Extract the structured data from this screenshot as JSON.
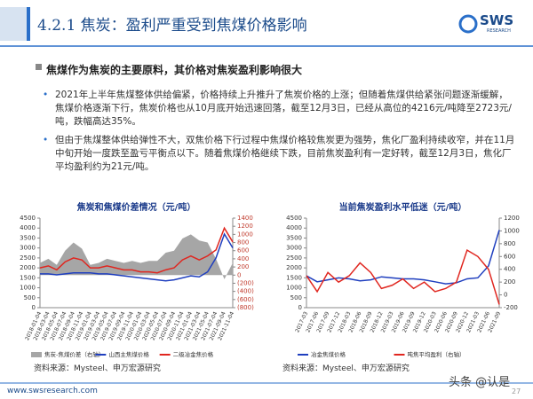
{
  "header": {
    "title": "4.2.1 焦炭：盈利严重受到焦煤价格影响",
    "logo": "SWS",
    "logo_sub": "RESEARCH"
  },
  "subheading": "焦煤作为焦炭的主要原料，其价格对焦炭盈利影响很大",
  "bullets": [
    "2021年上半年焦煤整体供给偏紧，价格持续上升推升了焦炭价格的上涨；但随着焦煤供给紧张问题逐渐缓解，焦煤价格逐渐下行，焦炭价格也从10月底开始迅速回落，截至12月3日，已经从高位的4216元/吨降至2723元/吨，跌幅高达35%。",
    "但由于焦煤整体供给弹性不大，双焦价格下行过程中焦煤价格较焦炭更为强势，焦化厂盈利持续收窄，并在11月中旬开始一度跌至盈亏平衡点以下。随着焦煤价格继续下跌，目前焦炭盈利有一定好转，截至12月3日，焦化厂平均盈利约为21元/吨。"
  ],
  "sources": [
    "资料来源：Mysteel、申万宏源研究",
    "资料来源：Mysteel、申万宏源研究"
  ],
  "footer": {
    "url": "www.swsresearch.com",
    "watermark": "头条 @认是",
    "page": "27"
  },
  "chart_data": [
    {
      "type": "line",
      "title": "焦炭和焦煤价差情况（元/吨）",
      "categories": [
        "2018-01-04",
        "2018-03-04",
        "2018-05-04",
        "2018-07-04",
        "2018-09-04",
        "2018-11-04",
        "2019-01-04",
        "2019-03-04",
        "2019-05-04",
        "2019-07-04",
        "2019-09-04",
        "2019-11-04",
        "2020-01-04",
        "2020-03-04",
        "2020-05-04",
        "2020-07-04",
        "2020-09-04",
        "2020-11-04",
        "2021-01-04",
        "2021-03-04",
        "2021-05-04",
        "2021-07-04",
        "2021-09-04",
        "2021-11-04"
      ],
      "ylim": [
        0,
        4500
      ],
      "yticks": [
        0,
        500,
        1000,
        1500,
        2000,
        2500,
        3000,
        3500,
        4000,
        4500
      ],
      "y2lim": [
        -800,
        1400
      ],
      "y2ticks": [
        {
          "value": -800,
          "label": "(800)"
        },
        {
          "value": -600,
          "label": "(600)"
        },
        {
          "value": -400,
          "label": "(400)"
        },
        {
          "value": -200,
          "label": "(200)"
        },
        0,
        200,
        400,
        600,
        800,
        1000,
        1200,
        1400
      ],
      "series": [
        {
          "name": "焦炭-焦煤价差（右轴）",
          "color": "#a6a6a6",
          "type": "area",
          "axis": "y2",
          "values": [
            300,
            400,
            250,
            600,
            800,
            650,
            250,
            300,
            400,
            350,
            300,
            350,
            300,
            350,
            350,
            550,
            600,
            900,
            1000,
            850,
            800,
            400,
            -100,
            300
          ]
        },
        {
          "name": "山西主焦煤价格",
          "color": "#1f3fbf",
          "values": [
            1700,
            1700,
            1650,
            1700,
            1750,
            1750,
            1750,
            1700,
            1700,
            1650,
            1600,
            1550,
            1500,
            1450,
            1400,
            1350,
            1400,
            1500,
            1600,
            1550,
            1800,
            2500,
            3700,
            3000
          ]
        },
        {
          "name": "二级冶金焦价格",
          "color": "#e0261f",
          "values": [
            2000,
            2100,
            1900,
            2300,
            2500,
            2400,
            2000,
            2000,
            2100,
            2000,
            1900,
            1900,
            1800,
            1800,
            1750,
            1900,
            2000,
            2400,
            2600,
            2400,
            2600,
            2900,
            4000,
            3300
          ]
        }
      ]
    },
    {
      "type": "line",
      "title": "当前焦炭盈利水平低迷（元/吨）",
      "categories": [
        "2017-03",
        "2017-06",
        "2017-09",
        "2017-12",
        "2018-03",
        "2018-06",
        "2018-09",
        "2018-12",
        "2019-03",
        "2019-06",
        "2019-09",
        "2019-12",
        "2020-03",
        "2020-06",
        "2020-09",
        "2020-12",
        "2021-03",
        "2021-06",
        "2021-09"
      ],
      "ylim": [
        0,
        4500
      ],
      "yticks": [
        0,
        500,
        1000,
        1500,
        2000,
        2500,
        3000,
        3500,
        4000,
        4500
      ],
      "y2lim": [
        -200,
        1200
      ],
      "y2ticks": [
        -200,
        0,
        200,
        400,
        600,
        800,
        1000,
        1200
      ],
      "series": [
        {
          "name": "冶金焦煤价格",
          "color": "#1f3fbf",
          "values": [
            1600,
            1300,
            1400,
            1500,
            1450,
            1350,
            1400,
            1550,
            1500,
            1450,
            1450,
            1400,
            1300,
            1200,
            1250,
            1450,
            1500,
            2100,
            3900
          ]
        },
        {
          "name": "吨焦平均盈利（右轴）",
          "color": "#e0261f",
          "axis": "y2",
          "values": [
            300,
            50,
            350,
            200,
            300,
            500,
            350,
            100,
            150,
            250,
            100,
            200,
            50,
            100,
            200,
            700,
            600,
            400,
            -150
          ]
        }
      ]
    }
  ]
}
